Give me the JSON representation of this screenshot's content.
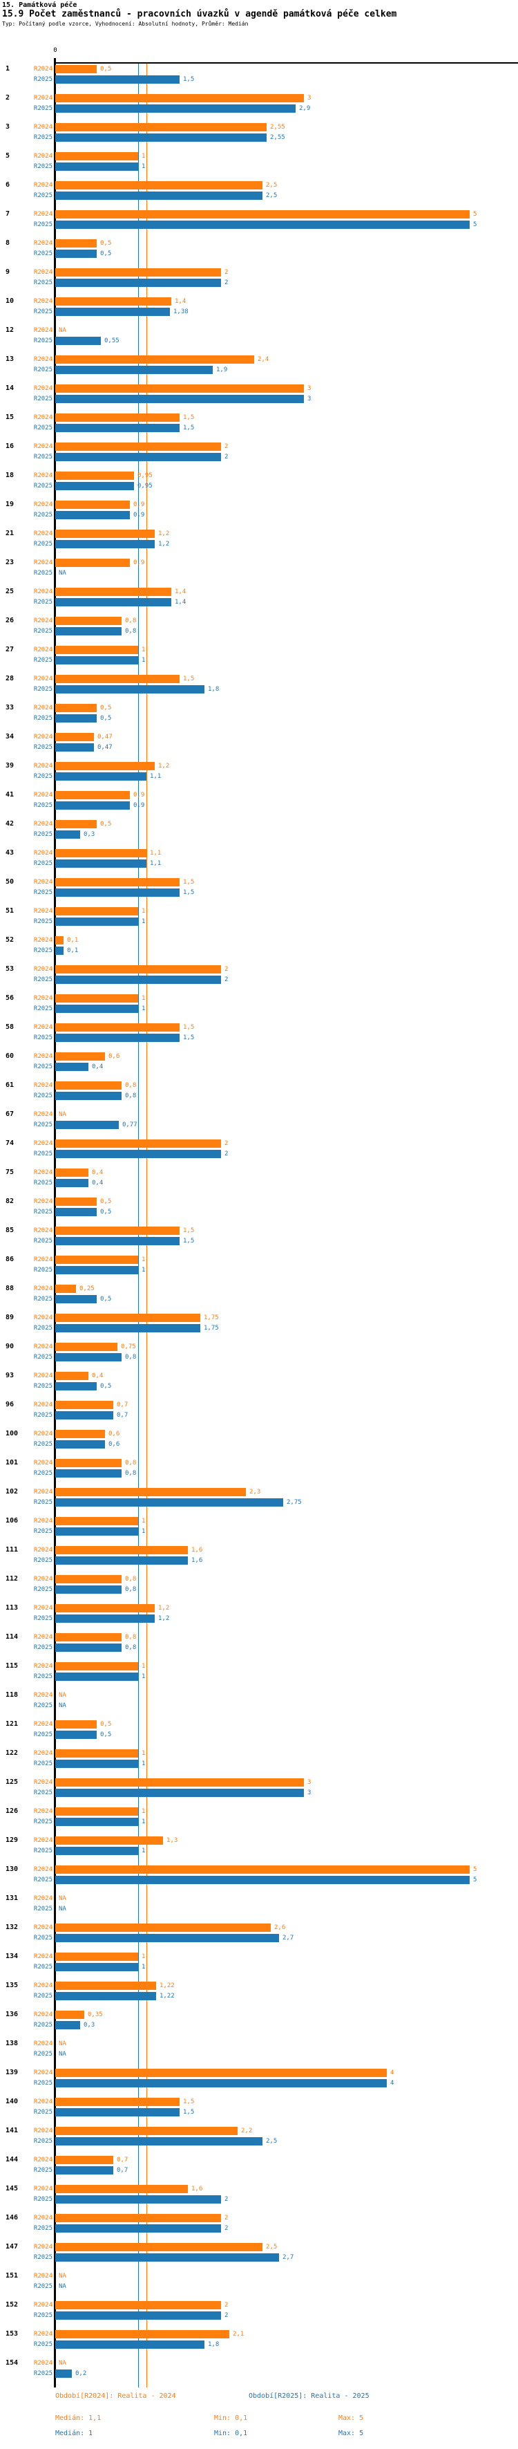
{
  "header": {
    "title": "15. Památková péče",
    "subtitle": "15.9 Počet zaměstnanců - pracovních úvazků v agendě památková péče celkem",
    "type_line": "Typ: Počítaný podle vzorce, Vyhodnocení: Absolutní hodnoty, Průměr: Medián"
  },
  "axis": {
    "zero_label": "0"
  },
  "colors": {
    "r2024": "#ff7f0e",
    "r2025": "#1f77b4",
    "axis": "#000000"
  },
  "footer": {
    "legend_r2024": "Období[R2024]: Realita - 2024",
    "legend_r2025": "Období[R2025]: Realita - 2025",
    "stats_r2024": {
      "median": "Medián: 1,1",
      "min": "Min: 0,1",
      "max": "Max: 5"
    },
    "stats_r2025": {
      "median": "Medián: 1",
      "min": "Min: 0,1",
      "max": "Max: 5"
    }
  },
  "chart_data": {
    "type": "bar",
    "orientation": "horizontal",
    "title": "15.9 Počet zaměstnanců - pracovních úvazků v agendě památková péče celkem",
    "na_text": "NA",
    "xlim": [
      0,
      5.58
    ],
    "series": [
      {
        "key": "v24",
        "label": "R2024",
        "color": "#ff7f0e",
        "median": 1.1,
        "min": 0.1,
        "max": 5
      },
      {
        "key": "v25",
        "label": "R2025",
        "color": "#1f77b4",
        "median": 1.0,
        "min": 0.1,
        "max": 5
      }
    ],
    "reference_lines": [
      {
        "series": "R2025",
        "value": 1.0,
        "color": "#1f77b4"
      },
      {
        "series": "R2024",
        "value": 1.1,
        "color": "#ff7f0e"
      }
    ],
    "rows": [
      {
        "n": "1",
        "v24": 0.5,
        "d24": "0,5",
        "v25": 1.5,
        "d25": "1,5"
      },
      {
        "n": "2",
        "v24": 3,
        "d24": "3",
        "v25": 2.9,
        "d25": "2,9"
      },
      {
        "n": "3",
        "v24": 2.55,
        "d24": "2,55",
        "v25": 2.55,
        "d25": "2,55"
      },
      {
        "n": "5",
        "v24": 1,
        "d24": "1",
        "v25": 1,
        "d25": "1"
      },
      {
        "n": "6",
        "v24": 2.5,
        "d24": "2,5",
        "v25": 2.5,
        "d25": "2,5"
      },
      {
        "n": "7",
        "v24": 5,
        "d24": "5",
        "v25": 5,
        "d25": "5"
      },
      {
        "n": "8",
        "v24": 0.5,
        "d24": "0,5",
        "v25": 0.5,
        "d25": "0,5"
      },
      {
        "n": "9",
        "v24": 2,
        "d24": "2",
        "v25": 2,
        "d25": "2"
      },
      {
        "n": "10",
        "v24": 1.4,
        "d24": "1,4",
        "v25": 1.38,
        "d25": "1,38"
      },
      {
        "n": "12",
        "v24": null,
        "d24": "NA",
        "v25": 0.55,
        "d25": "0,55"
      },
      {
        "n": "13",
        "v24": 2.4,
        "d24": "2,4",
        "v25": 1.9,
        "d25": "1,9"
      },
      {
        "n": "14",
        "v24": 3,
        "d24": "3",
        "v25": 3,
        "d25": "3"
      },
      {
        "n": "15",
        "v24": 1.5,
        "d24": "1,5",
        "v25": 1.5,
        "d25": "1,5"
      },
      {
        "n": "16",
        "v24": 2,
        "d24": "2",
        "v25": 2,
        "d25": "2"
      },
      {
        "n": "18",
        "v24": 0.95,
        "d24": "0,95",
        "v25": 0.95,
        "d25": "0,95"
      },
      {
        "n": "19",
        "v24": 0.9,
        "d24": "0,9",
        "v25": 0.9,
        "d25": "0,9"
      },
      {
        "n": "21",
        "v24": 1.2,
        "d24": "1,2",
        "v25": 1.2,
        "d25": "1,2"
      },
      {
        "n": "23",
        "v24": 0.9,
        "d24": "0,9",
        "v25": null,
        "d25": "NA"
      },
      {
        "n": "25",
        "v24": 1.4,
        "d24": "1,4",
        "v25": 1.4,
        "d25": "1,4"
      },
      {
        "n": "26",
        "v24": 0.8,
        "d24": "0,8",
        "v25": 0.8,
        "d25": "0,8"
      },
      {
        "n": "27",
        "v24": 1,
        "d24": "1",
        "v25": 1,
        "d25": "1"
      },
      {
        "n": "28",
        "v24": 1.5,
        "d24": "1,5",
        "v25": 1.8,
        "d25": "1,8"
      },
      {
        "n": "33",
        "v24": 0.5,
        "d24": "0,5",
        "v25": 0.5,
        "d25": "0,5"
      },
      {
        "n": "34",
        "v24": 0.47,
        "d24": "0,47",
        "v25": 0.47,
        "d25": "0,47"
      },
      {
        "n": "39",
        "v24": 1.2,
        "d24": "1,2",
        "v25": 1.1,
        "d25": "1,1"
      },
      {
        "n": "41",
        "v24": 0.9,
        "d24": "0,9",
        "v25": 0.9,
        "d25": "0,9"
      },
      {
        "n": "42",
        "v24": 0.5,
        "d24": "0,5",
        "v25": 0.3,
        "d25": "0,3"
      },
      {
        "n": "43",
        "v24": 1.1,
        "d24": "1,1",
        "v25": 1.1,
        "d25": "1,1"
      },
      {
        "n": "50",
        "v24": 1.5,
        "d24": "1,5",
        "v25": 1.5,
        "d25": "1,5"
      },
      {
        "n": "51",
        "v24": 1,
        "d24": "1",
        "v25": 1,
        "d25": "1"
      },
      {
        "n": "52",
        "v24": 0.1,
        "d24": "0,1",
        "v25": 0.1,
        "d25": "0,1"
      },
      {
        "n": "53",
        "v24": 2,
        "d24": "2",
        "v25": 2,
        "d25": "2"
      },
      {
        "n": "56",
        "v24": 1,
        "d24": "1",
        "v25": 1,
        "d25": "1"
      },
      {
        "n": "58",
        "v24": 1.5,
        "d24": "1,5",
        "v25": 1.5,
        "d25": "1,5"
      },
      {
        "n": "60",
        "v24": 0.6,
        "d24": "0,6",
        "v25": 0.4,
        "d25": "0,4"
      },
      {
        "n": "61",
        "v24": 0.8,
        "d24": "0,8",
        "v25": 0.8,
        "d25": "0,8"
      },
      {
        "n": "67",
        "v24": null,
        "d24": "NA",
        "v25": 0.77,
        "d25": "0,77"
      },
      {
        "n": "74",
        "v24": 2,
        "d24": "2",
        "v25": 2,
        "d25": "2"
      },
      {
        "n": "75",
        "v24": 0.4,
        "d24": "0,4",
        "v25": 0.4,
        "d25": "0,4"
      },
      {
        "n": "82",
        "v24": 0.5,
        "d24": "0,5",
        "v25": 0.5,
        "d25": "0,5"
      },
      {
        "n": "85",
        "v24": 1.5,
        "d24": "1,5",
        "v25": 1.5,
        "d25": "1,5"
      },
      {
        "n": "86",
        "v24": 1,
        "d24": "1",
        "v25": 1,
        "d25": "1"
      },
      {
        "n": "88",
        "v24": 0.25,
        "d24": "0,25",
        "v25": 0.5,
        "d25": "0,5"
      },
      {
        "n": "89",
        "v24": 1.75,
        "d24": "1,75",
        "v25": 1.75,
        "d25": "1,75"
      },
      {
        "n": "90",
        "v24": 0.75,
        "d24": "0,75",
        "v25": 0.8,
        "d25": "0,8"
      },
      {
        "n": "93",
        "v24": 0.4,
        "d24": "0,4",
        "v25": 0.5,
        "d25": "0,5"
      },
      {
        "n": "96",
        "v24": 0.7,
        "d24": "0,7",
        "v25": 0.7,
        "d25": "0,7"
      },
      {
        "n": "100",
        "v24": 0.6,
        "d24": "0,6",
        "v25": 0.6,
        "d25": "0,6"
      },
      {
        "n": "101",
        "v24": 0.8,
        "d24": "0,8",
        "v25": 0.8,
        "d25": "0,8"
      },
      {
        "n": "102",
        "v24": 2.3,
        "d24": "2,3",
        "v25": 2.75,
        "d25": "2,75"
      },
      {
        "n": "106",
        "v24": 1,
        "d24": "1",
        "v25": 1,
        "d25": "1"
      },
      {
        "n": "111",
        "v24": 1.6,
        "d24": "1,6",
        "v25": 1.6,
        "d25": "1,6"
      },
      {
        "n": "112",
        "v24": 0.8,
        "d24": "0,8",
        "v25": 0.8,
        "d25": "0,8"
      },
      {
        "n": "113",
        "v24": 1.2,
        "d24": "1,2",
        "v25": 1.2,
        "d25": "1,2"
      },
      {
        "n": "114",
        "v24": 0.8,
        "d24": "0,8",
        "v25": 0.8,
        "d25": "0,8"
      },
      {
        "n": "115",
        "v24": 1,
        "d24": "1",
        "v25": 1,
        "d25": "1"
      },
      {
        "n": "118",
        "v24": null,
        "d24": "NA",
        "v25": null,
        "d25": "NA"
      },
      {
        "n": "121",
        "v24": 0.5,
        "d24": "0,5",
        "v25": 0.5,
        "d25": "0,5"
      },
      {
        "n": "122",
        "v24": 1,
        "d24": "1",
        "v25": 1,
        "d25": "1"
      },
      {
        "n": "125",
        "v24": 3,
        "d24": "3",
        "v25": 3,
        "d25": "3"
      },
      {
        "n": "126",
        "v24": 1,
        "d24": "1",
        "v25": 1,
        "d25": "1"
      },
      {
        "n": "129",
        "v24": 1.3,
        "d24": "1,3",
        "v25": 1,
        "d25": "1"
      },
      {
        "n": "130",
        "v24": 5,
        "d24": "5",
        "v25": 5,
        "d25": "5"
      },
      {
        "n": "131",
        "v24": null,
        "d24": "NA",
        "v25": null,
        "d25": "NA"
      },
      {
        "n": "132",
        "v24": 2.6,
        "d24": "2,6",
        "v25": 2.7,
        "d25": "2,7"
      },
      {
        "n": "134",
        "v24": 1,
        "d24": "1",
        "v25": 1,
        "d25": "1"
      },
      {
        "n": "135",
        "v24": 1.22,
        "d24": "1,22",
        "v25": 1.22,
        "d25": "1,22"
      },
      {
        "n": "136",
        "v24": 0.35,
        "d24": "0,35",
        "v25": 0.3,
        "d25": "0,3"
      },
      {
        "n": "138",
        "v24": null,
        "d24": "NA",
        "v25": null,
        "d25": "NA"
      },
      {
        "n": "139",
        "v24": 4,
        "d24": "4",
        "v25": 4,
        "d25": "4"
      },
      {
        "n": "140",
        "v24": 1.5,
        "d24": "1,5",
        "v25": 1.5,
        "d25": "1,5"
      },
      {
        "n": "141",
        "v24": 2.2,
        "d24": "2,2",
        "v25": 2.5,
        "d25": "2,5"
      },
      {
        "n": "144",
        "v24": 0.7,
        "d24": "0,7",
        "v25": 0.7,
        "d25": "0,7"
      },
      {
        "n": "145",
        "v24": 1.6,
        "d24": "1,6",
        "v25": 2,
        "d25": "2"
      },
      {
        "n": "146",
        "v24": 2,
        "d24": "2",
        "v25": 2,
        "d25": "2"
      },
      {
        "n": "147",
        "v24": 2.5,
        "d24": "2,5",
        "v25": 2.7,
        "d25": "2,7"
      },
      {
        "n": "151",
        "v24": null,
        "d24": "NA",
        "v25": null,
        "d25": "NA"
      },
      {
        "n": "152",
        "v24": 2,
        "d24": "2",
        "v25": 2,
        "d25": "2"
      },
      {
        "n": "153",
        "v24": 2.1,
        "d24": "2,1",
        "v25": 1.8,
        "d25": "1,8"
      },
      {
        "n": "154",
        "v24": null,
        "d24": "NA",
        "v25": 0.2,
        "d25": "0,2"
      }
    ]
  }
}
